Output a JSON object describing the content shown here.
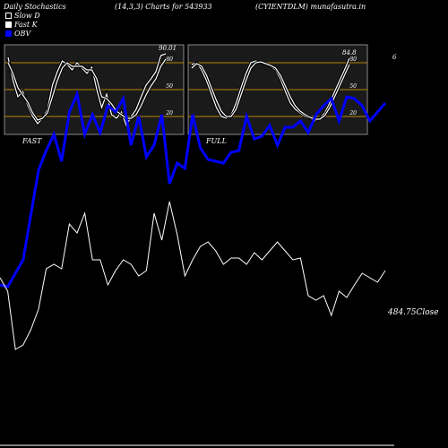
{
  "header": {
    "left": "Daily Stochastics",
    "middle": "(14,3,3) Charts for 543933",
    "right": "(CYIENTDLM) munafasutra.in"
  },
  "legend": [
    {
      "label": "Slow  D",
      "color": "#ffffff",
      "style": "hollow"
    },
    {
      "label": "Fast K",
      "color": "#ffffff",
      "style": "filled"
    },
    {
      "label": "OBV",
      "color": "#0000ff",
      "style": "filled"
    }
  ],
  "colors": {
    "background": "#000000",
    "panel": "#1a1a1a",
    "level": "#b8860b",
    "obv": "#0000ff",
    "price": "#ffffff"
  },
  "chart_data": [
    {
      "type": "line",
      "panel_label": "FAST",
      "last_value_label": "90.01",
      "ylim": [
        0,
        100
      ],
      "levels": [
        20,
        50,
        80
      ],
      "level_labels": [
        "20",
        "50",
        "80"
      ],
      "series": [
        {
          "values": [
            86,
            60,
            42,
            48,
            32,
            20,
            12,
            18,
            28,
            55,
            70,
            82,
            78,
            72,
            80,
            74,
            68,
            75,
            50,
            30,
            45,
            22,
            18,
            25,
            10,
            20,
            28,
            42,
            55,
            62,
            70,
            88,
            90
          ]
        },
        {
          "values": [
            80,
            68,
            52,
            44,
            36,
            24,
            16,
            18,
            24,
            42,
            60,
            74,
            80,
            76,
            76,
            76,
            72,
            72,
            62,
            42,
            40,
            34,
            26,
            22,
            18,
            18,
            22,
            32,
            44,
            54,
            62,
            76,
            84
          ]
        }
      ]
    },
    {
      "type": "line",
      "panel_label": "FULL",
      "last_value_label": "84.8",
      "ylim": [
        0,
        100
      ],
      "levels": [
        20,
        50,
        80
      ],
      "level_labels": [
        "20",
        "50",
        "80"
      ],
      "series": [
        {
          "values": [
            78,
            80,
            72,
            60,
            45,
            30,
            20,
            18,
            22,
            35,
            52,
            68,
            80,
            82,
            80,
            78,
            76,
            72,
            62,
            48,
            35,
            28,
            24,
            20,
            18,
            15,
            18,
            24,
            35,
            48,
            60,
            72,
            85
          ]
        },
        {
          "values": [
            74,
            79,
            76,
            66,
            52,
            38,
            26,
            20,
            20,
            28,
            44,
            60,
            74,
            80,
            81,
            79,
            77,
            74,
            66,
            54,
            42,
            32,
            26,
            22,
            19,
            17,
            17,
            21,
            30,
            42,
            54,
            66,
            78
          ]
        }
      ]
    },
    {
      "type": "line",
      "right_label": "484.75Close",
      "extra_label": "6",
      "series": [
        {
          "name": "OBV",
          "values": [
            318,
            320,
            305,
            290,
            240,
            190,
            168,
            150,
            180,
            125,
            105,
            150,
            128,
            148,
            118,
            125,
            110,
            162,
            130,
            175,
            162,
            128,
            205,
            182,
            188,
            128,
            165,
            178,
            180,
            182,
            170,
            168,
            130,
            155,
            152,
            140,
            162,
            142,
            142,
            135,
            148,
            128,
            118,
            110,
            135,
            108,
            110,
            118,
            135,
            125,
            115
          ]
        },
        {
          "name": "Close",
          "values": [
            310,
            325,
            390,
            385,
            368,
            345,
            300,
            295,
            300,
            250,
            260,
            238,
            290,
            290,
            318,
            302,
            290,
            295,
            308,
            302,
            238,
            268,
            225,
            262,
            308,
            290,
            275,
            270,
            280,
            295,
            288,
            288,
            295,
            282,
            290,
            280,
            270,
            280,
            290,
            288,
            330,
            335,
            330,
            352,
            325,
            332,
            318,
            305,
            310,
            315,
            302
          ]
        }
      ]
    }
  ]
}
